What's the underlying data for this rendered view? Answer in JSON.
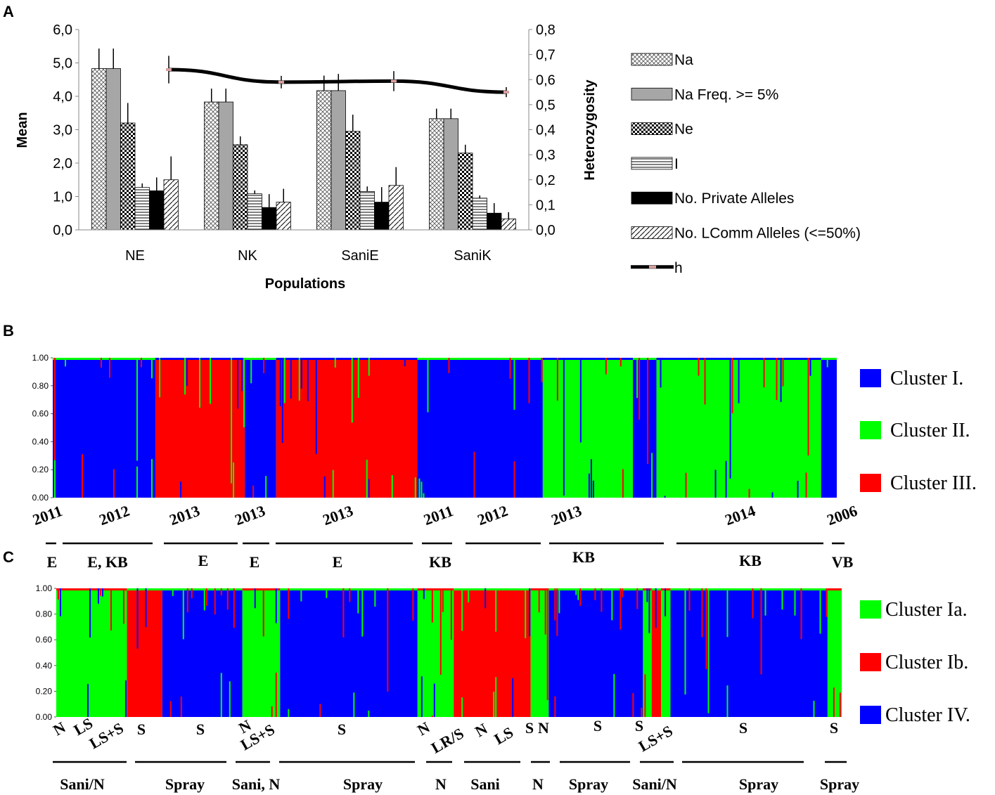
{
  "panels": {
    "a": "A",
    "b": "B",
    "c": "C"
  },
  "chart_data": [
    {
      "panel": "A",
      "type": "bar",
      "xlabel": "Populations",
      "ylabel": "Mean",
      "y2label": "Heterozygosity",
      "ylim": [
        0,
        6
      ],
      "y2lim": [
        0,
        0.8
      ],
      "yticks": [
        "0,0",
        "1,0",
        "2,0",
        "3,0",
        "4,0",
        "5,0",
        "6,0"
      ],
      "y2ticks": [
        "0,0",
        "0,1",
        "0,2",
        "0,3",
        "0,4",
        "0,5",
        "0,6",
        "0,7",
        "0,8"
      ],
      "categories": [
        "NE",
        "NK",
        "SaniE",
        "SaniK"
      ],
      "series": [
        {
          "name": "Na",
          "pattern": "crosshatch",
          "values": [
            4.83,
            3.83,
            4.17,
            3.33
          ],
          "errors": [
            0.6,
            0.4,
            0.45,
            0.3
          ]
        },
        {
          "name": "Na Freq. >= 5%",
          "pattern": "gray",
          "values": [
            4.83,
            3.83,
            4.17,
            3.33
          ],
          "errors": [
            0.6,
            0.4,
            0.5,
            0.3
          ]
        },
        {
          "name": "Ne",
          "pattern": "dots",
          "values": [
            3.2,
            2.55,
            2.95,
            2.3
          ],
          "errors": [
            0.6,
            0.25,
            0.5,
            0.25
          ]
        },
        {
          "name": "I",
          "pattern": "hlines",
          "values": [
            1.27,
            1.08,
            1.15,
            0.95
          ],
          "errors": [
            0.12,
            0.1,
            0.15,
            0.08
          ]
        },
        {
          "name": "No. Private Alleles",
          "pattern": "black",
          "values": [
            1.17,
            0.67,
            0.83,
            0.5
          ],
          "errors": [
            0.4,
            0.4,
            0.45,
            0.3
          ]
        },
        {
          "name": "No. LComm Alleles (<=50%)",
          "pattern": "diag",
          "values": [
            1.5,
            0.83,
            1.33,
            0.33
          ],
          "errors": [
            0.7,
            0.4,
            0.55,
            0.2
          ]
        }
      ],
      "line": {
        "name": "h",
        "axis": "right",
        "values": [
          0.64,
          0.59,
          0.594,
          0.55
        ],
        "errors": [
          0.055,
          0.025,
          0.04,
          0.02
        ]
      }
    },
    {
      "panel": "B",
      "type": "stacked-bar",
      "yticks": [
        "1.00",
        "0.80",
        "0.60",
        "0.40",
        "0.20",
        "0.00"
      ],
      "ylim": [
        0,
        1
      ],
      "legend": [
        {
          "label": "Cluster I.",
          "color": "#0000ff"
        },
        {
          "label": "Cluster II.",
          "color": "#00ff00"
        },
        {
          "label": "Cluster III.",
          "color": "#ff0000"
        }
      ],
      "segments": [
        {
          "dominant": "Cluster I.",
          "from": 0.0,
          "to": 0.131
        },
        {
          "dominant": "Cluster III.",
          "from": 0.131,
          "to": 0.245
        },
        {
          "dominant": "Cluster I.",
          "from": 0.245,
          "to": 0.285
        },
        {
          "dominant": "Cluster III.",
          "from": 0.285,
          "to": 0.465
        },
        {
          "dominant": "Cluster I.",
          "from": 0.465,
          "to": 0.625
        },
        {
          "dominant": "Cluster II.",
          "from": 0.625,
          "to": 0.74
        },
        {
          "dominant": "Cluster I.",
          "from": 0.74,
          "to": 0.77
        },
        {
          "dominant": "Cluster II.",
          "from": 0.77,
          "to": 0.98
        },
        {
          "dominant": "Cluster I.",
          "from": 0.98,
          "to": 1.0
        }
      ],
      "years": [
        "2011",
        "2012",
        "2013",
        "2013",
        "2013",
        "2011",
        "2012",
        "2013",
        "2014",
        "2006"
      ],
      "groups": [
        "E",
        "E, KB",
        "E",
        "E",
        "E",
        "KB",
        "KB",
        "KB",
        "VB"
      ]
    },
    {
      "panel": "C",
      "type": "stacked-bar",
      "yticks": [
        "1.00",
        "0.80",
        "0.60",
        "0.40",
        "0.20",
        "0.00"
      ],
      "ylim": [
        0,
        1
      ],
      "legend": [
        {
          "label": "Cluster Ia.",
          "color": "#00ff00"
        },
        {
          "label": "Cluster Ib.",
          "color": "#ff0000"
        },
        {
          "label": "Cluster IV.",
          "color": "#0000ff"
        }
      ],
      "segments": [
        {
          "dominant": "Cluster Ia.",
          "from": 0.0,
          "to": 0.09
        },
        {
          "dominant": "Cluster Ib.",
          "from": 0.09,
          "to": 0.135
        },
        {
          "dominant": "Cluster IV.",
          "from": 0.135,
          "to": 0.237
        },
        {
          "dominant": "Cluster Ia.",
          "from": 0.237,
          "to": 0.285
        },
        {
          "dominant": "Cluster IV.",
          "from": 0.285,
          "to": 0.46
        },
        {
          "dominant": "Cluster Ia.",
          "from": 0.46,
          "to": 0.506
        },
        {
          "dominant": "Cluster Ib.",
          "from": 0.506,
          "to": 0.604
        },
        {
          "dominant": "Cluster Ia.",
          "from": 0.604,
          "to": 0.627
        },
        {
          "dominant": "Cluster IV.",
          "from": 0.627,
          "to": 0.747
        },
        {
          "dominant": "Cluster Ia.",
          "from": 0.747,
          "to": 0.758
        },
        {
          "dominant": "Cluster Ib.",
          "from": 0.758,
          "to": 0.77
        },
        {
          "dominant": "Cluster Ia.",
          "from": 0.77,
          "to": 0.782
        },
        {
          "dominant": "Cluster IV.",
          "from": 0.782,
          "to": 0.982
        },
        {
          "dominant": "Cluster Ia.",
          "from": 0.982,
          "to": 1.0
        }
      ],
      "treatments": [
        "N",
        "LS",
        "LS+S",
        "S",
        "S",
        "N",
        "LS+S",
        "S",
        "N",
        "LR/S",
        "N",
        "LS",
        "S",
        "N",
        "S",
        "S",
        "LS+S",
        "S",
        "S"
      ],
      "groups": [
        "Sani/N",
        "Spray",
        "Sani, N",
        "Spray",
        "N",
        "Sani",
        "N",
        "Spray",
        "Sani/N",
        "Spray",
        "Spray"
      ]
    }
  ]
}
